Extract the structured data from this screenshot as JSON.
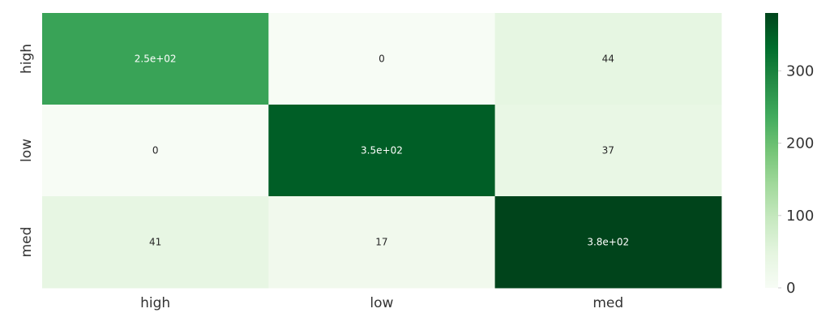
{
  "chart_data": {
    "type": "heatmap",
    "title": "",
    "xlabel": "",
    "ylabel": "",
    "x_categories": [
      "high",
      "low",
      "med"
    ],
    "y_categories": [
      "high",
      "low",
      "med"
    ],
    "values": [
      [
        250,
        0,
        44
      ],
      [
        0,
        350,
        37
      ],
      [
        41,
        17,
        380
      ]
    ],
    "annotations": [
      [
        "2.5e+02",
        "0",
        "44"
      ],
      [
        "0",
        "3.5e+02",
        "37"
      ],
      [
        "41",
        "17",
        "3.8e+02"
      ]
    ],
    "colormap": "Greens",
    "colorbar": {
      "min": 0,
      "max": 380,
      "ticks": [
        0,
        100,
        200,
        300
      ],
      "tick_labels": [
        "0",
        "100",
        "200",
        "300"
      ]
    },
    "grid": false,
    "legend": "colorbar-right"
  }
}
